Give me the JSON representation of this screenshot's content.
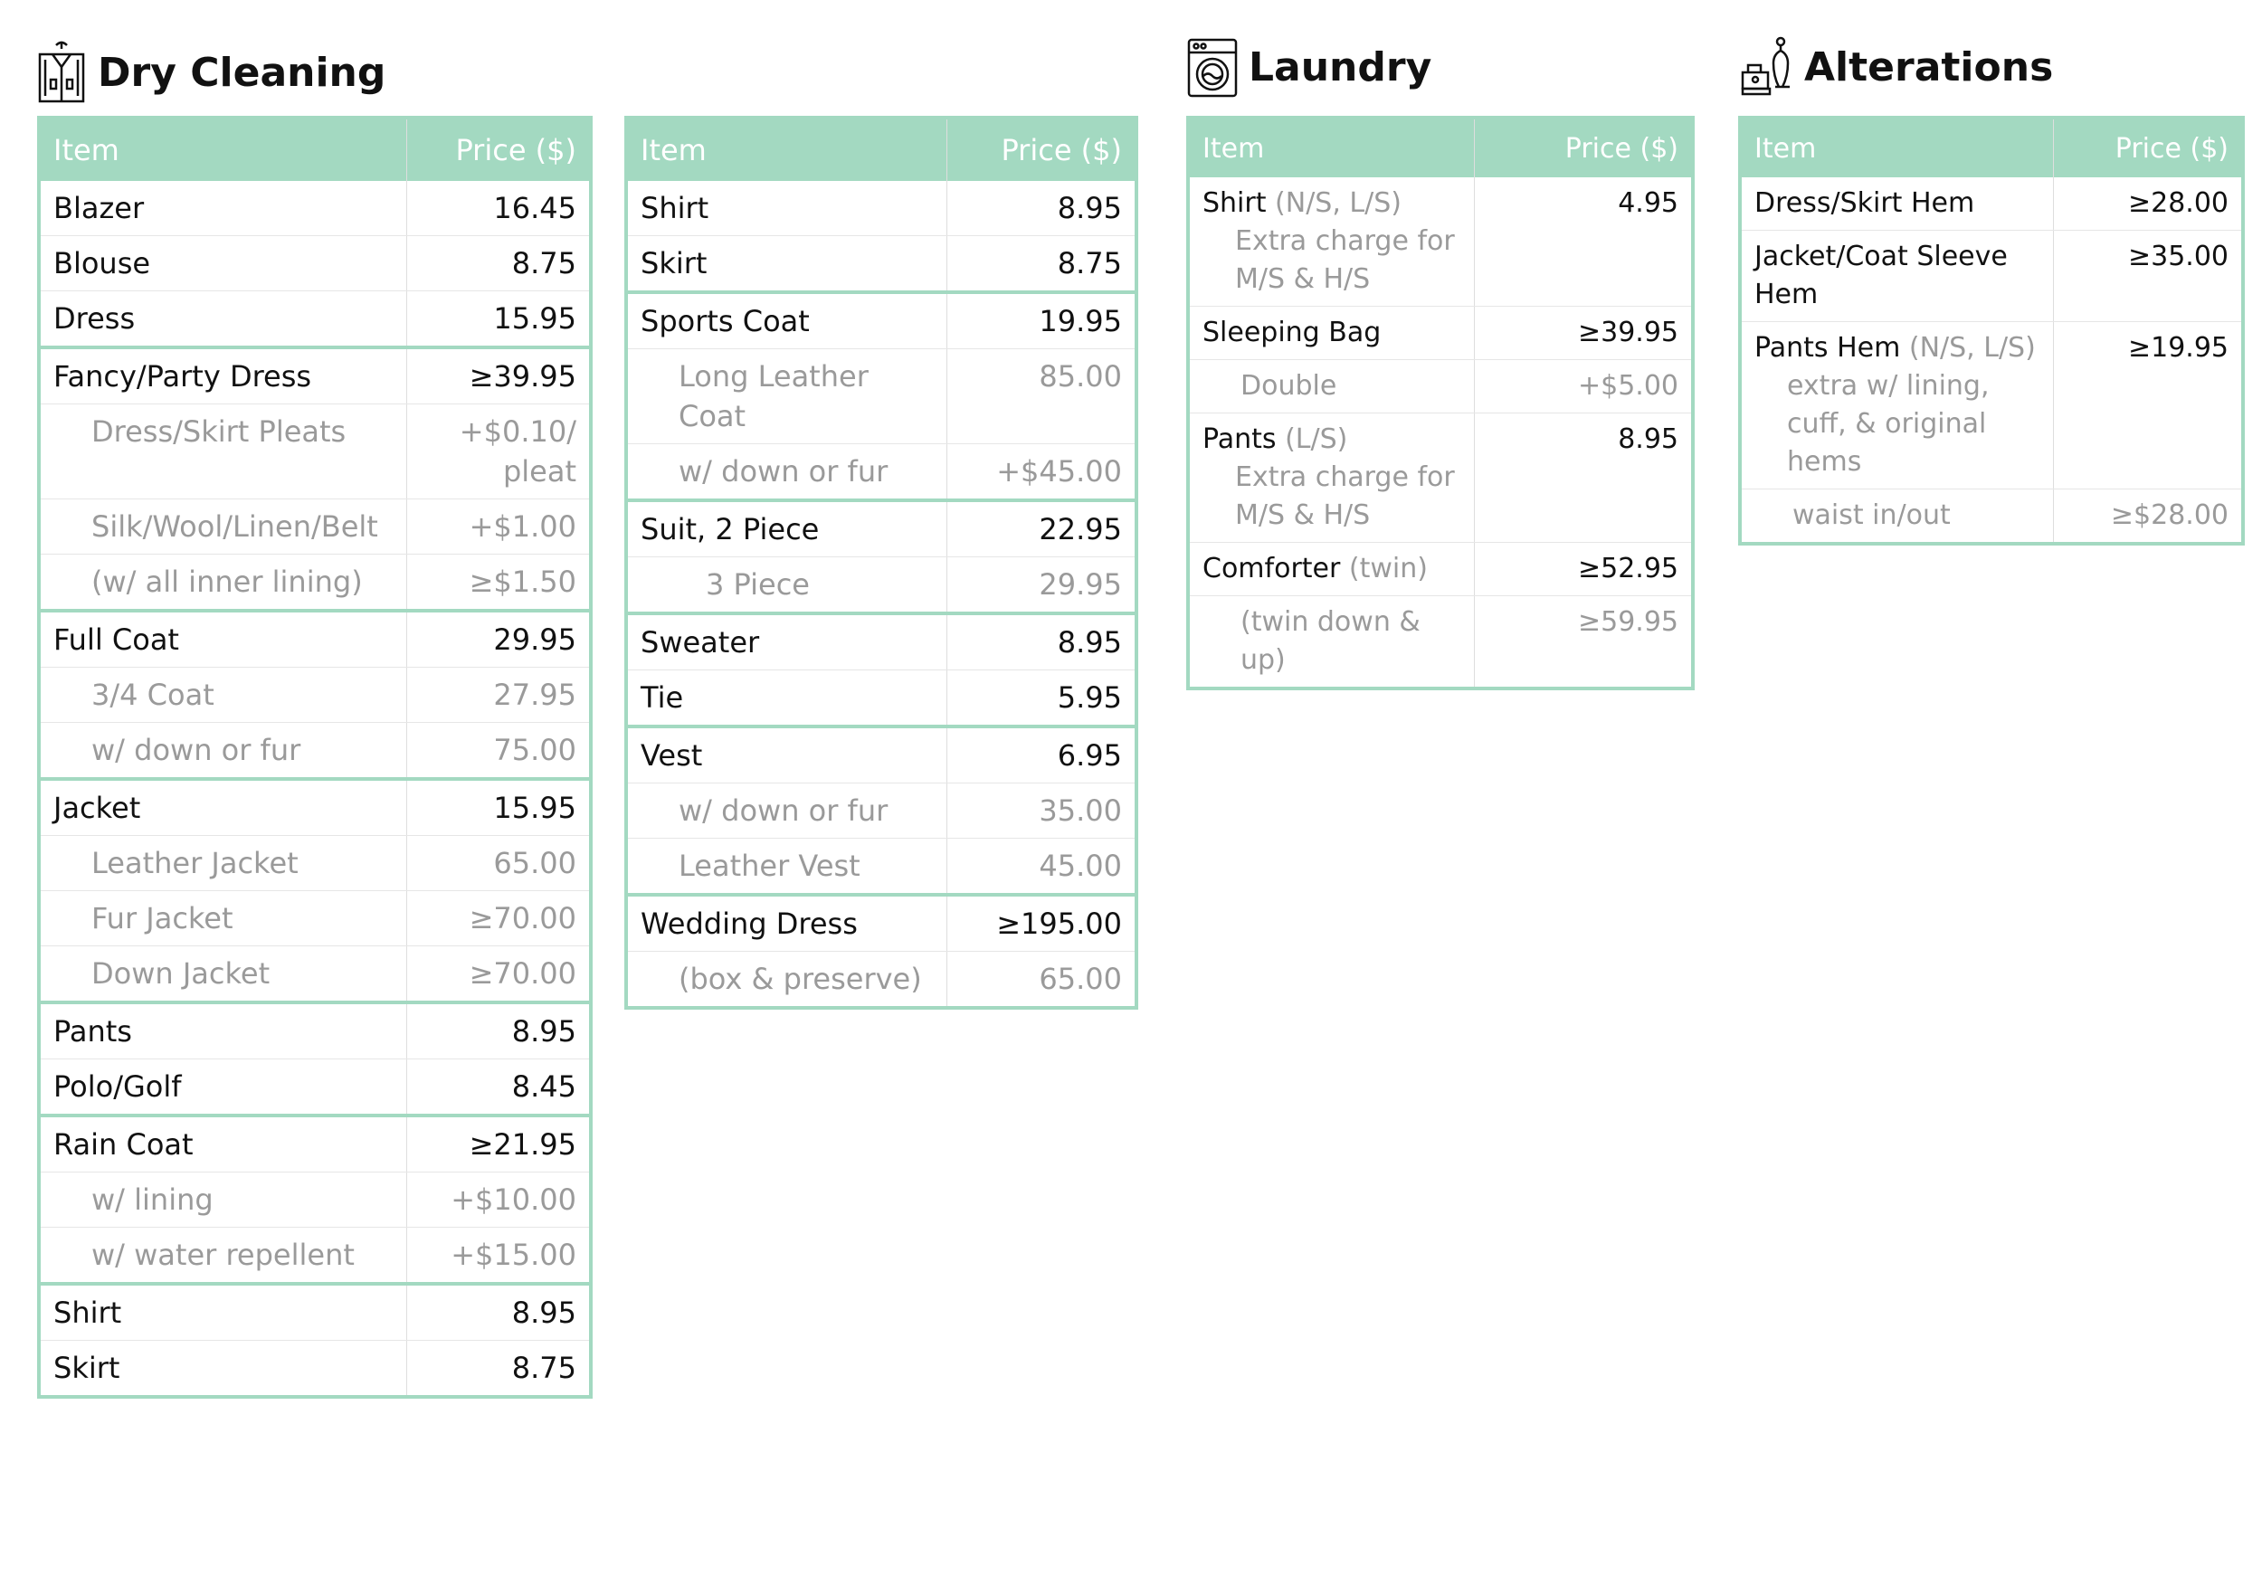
{
  "sections": {
    "dry_cleaning": {
      "title": "Dry Cleaning",
      "icon": "garment-bag-icon"
    },
    "laundry": {
      "title": "Laundry",
      "icon": "washing-machine-icon"
    },
    "alterations": {
      "title": "Alterations",
      "icon": "sewing-icon"
    }
  },
  "headers": {
    "item": "Item",
    "price": "Price ($)"
  },
  "dry_cleaning_left": [
    {
      "name": "Blazer",
      "price": "16.45",
      "level": 0,
      "group_start": false
    },
    {
      "name": "Blouse",
      "price": "8.75",
      "level": 0,
      "group_start": false
    },
    {
      "name": "Dress",
      "price": "15.95",
      "level": 0,
      "group_start": false
    },
    {
      "name": "Fancy/Party Dress",
      "price": "≥39.95",
      "level": 0,
      "group_start": true
    },
    {
      "name": "Dress/Skirt Pleats",
      "price": "+$0.10/ pleat",
      "level": 1,
      "group_start": false
    },
    {
      "name": "Silk/Wool/Linen/Belt",
      "price": "+$1.00",
      "level": 1,
      "group_start": false
    },
    {
      "name": "(w/ all inner lining)",
      "price": "≥$1.50",
      "level": 1,
      "group_start": false
    },
    {
      "name": "Full Coat",
      "price": "29.95",
      "level": 0,
      "group_start": true
    },
    {
      "name": "3/4 Coat",
      "price": "27.95",
      "level": 1,
      "group_start": false
    },
    {
      "name": "w/ down or fur",
      "price": "75.00",
      "level": 1,
      "group_start": false
    },
    {
      "name": "Jacket",
      "price": "15.95",
      "level": 0,
      "group_start": true
    },
    {
      "name": "Leather Jacket",
      "price": "65.00",
      "level": 1,
      "group_start": false
    },
    {
      "name": "Fur Jacket",
      "price": "≥70.00",
      "level": 1,
      "group_start": false
    },
    {
      "name": "Down Jacket",
      "price": "≥70.00",
      "level": 1,
      "group_start": false
    },
    {
      "name": "Pants",
      "price": "8.95",
      "level": 0,
      "group_start": true
    },
    {
      "name": "Polo/Golf",
      "price": "8.45",
      "level": 0,
      "group_start": false
    },
    {
      "name": "Rain Coat",
      "price": "≥21.95",
      "level": 0,
      "group_start": true
    },
    {
      "name": "w/ lining",
      "price": "+$10.00",
      "level": 1,
      "group_start": false
    },
    {
      "name": "w/ water repellent",
      "price": "+$15.00",
      "level": 1,
      "group_start": false
    },
    {
      "name": "Shirt",
      "price": "8.95",
      "level": 0,
      "group_start": true
    },
    {
      "name": "Skirt",
      "price": "8.75",
      "level": 0,
      "group_start": false
    }
  ],
  "dry_cleaning_right": [
    {
      "name": "Shirt",
      "price": "8.95",
      "level": 0,
      "group_start": false
    },
    {
      "name": "Skirt",
      "price": "8.75",
      "level": 0,
      "group_start": false
    },
    {
      "name": "Sports Coat",
      "price": "19.95",
      "level": 0,
      "group_start": true
    },
    {
      "name": "Long Leather Coat",
      "price": "85.00",
      "level": 1,
      "group_start": false
    },
    {
      "name": "w/ down or fur",
      "price": "+$45.00",
      "level": 1,
      "group_start": false
    },
    {
      "name": "Suit, 2 Piece",
      "price": "22.95",
      "level": 0,
      "group_start": true
    },
    {
      "name": "3 Piece",
      "price": "29.95",
      "level": 2,
      "group_start": false
    },
    {
      "name": "Sweater",
      "price": "8.95",
      "level": 0,
      "group_start": true
    },
    {
      "name": "Tie",
      "price": "5.95",
      "level": 0,
      "group_start": false
    },
    {
      "name": "Vest",
      "price": "6.95",
      "level": 0,
      "group_start": true
    },
    {
      "name": "w/ down or fur",
      "price": "35.00",
      "level": 1,
      "group_start": false
    },
    {
      "name": "Leather Vest",
      "price": "45.00",
      "level": 1,
      "group_start": false
    },
    {
      "name": "Wedding Dress",
      "price": "≥195.00",
      "level": 0,
      "group_start": true
    },
    {
      "name": "(box & preserve)",
      "price": "65.00",
      "level": 1,
      "group_start": false
    }
  ],
  "laundry": [
    {
      "name": "Shirt",
      "note": "(N/S, L/S)",
      "subnote": "Extra charge for M/S & H/S",
      "price": "4.95",
      "level": 0
    },
    {
      "name": "Sleeping Bag",
      "note": "",
      "subnote": "",
      "price": "≥39.95",
      "level": 0
    },
    {
      "name": "Double",
      "note": "",
      "subnote": "",
      "price": "+$5.00",
      "level": 1
    },
    {
      "name": "Pants",
      "note": "(L/S)",
      "subnote": "Extra charge for M/S & H/S",
      "price": "8.95",
      "level": 0
    },
    {
      "name": "Comforter",
      "note": "(twin)",
      "subnote": "",
      "price": "≥52.95",
      "level": 0
    },
    {
      "name": "(twin down & up)",
      "note": "",
      "subnote": "",
      "price": "≥59.95",
      "level": 1
    }
  ],
  "alterations": [
    {
      "name": "Dress/Skirt Hem",
      "note": "",
      "subnote": "",
      "price": "≥28.00",
      "level": 0
    },
    {
      "name": "Jacket/Coat Sleeve Hem",
      "note": "",
      "subnote": "",
      "price": "≥35.00",
      "level": 0
    },
    {
      "name": "Pants Hem",
      "note": "(N/S, L/S)",
      "subnote": "extra w/ lining, cuff, & original hems",
      "price": "≥19.95",
      "level": 0
    },
    {
      "name": "waist in/out",
      "note": "",
      "subnote": "",
      "price": "≥$28.00",
      "level": 1
    }
  ],
  "colors": {
    "header_bg": "#a3d9c1",
    "muted_text": "#9a9a9a"
  }
}
